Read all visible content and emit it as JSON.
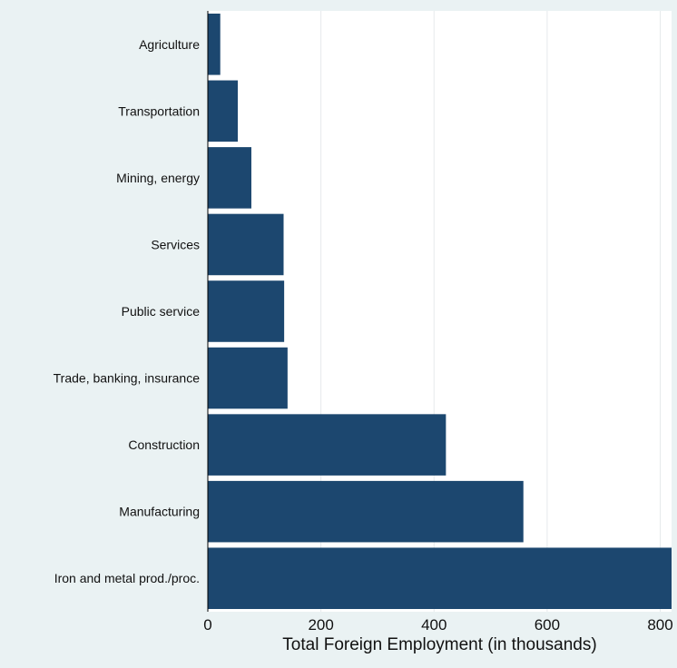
{
  "chart_data": {
    "type": "bar",
    "orientation": "horizontal",
    "title": "",
    "xlabel": "Total Foreign Employment (in thousands)",
    "ylabel": "",
    "categories": [
      "Agriculture",
      "Transportation",
      "Mining, energy",
      "Services",
      "Public service",
      "Trade, banking, insurance",
      "Construction",
      "Manufacturing",
      "Iron and metal prod./proc."
    ],
    "values": [
      22,
      53,
      77,
      134,
      135,
      141,
      421,
      558,
      820
    ],
    "xlim": [
      0,
      820
    ],
    "xticks": [
      0,
      200,
      400,
      600,
      800
    ],
    "xtick_labels": [
      "0",
      "200",
      "400",
      "600",
      "800"
    ],
    "grid": true,
    "legend": "none",
    "colors": {
      "bar": "#1c476f",
      "background": "#eaf2f3",
      "plot_area": "#ffffff",
      "grid": "#e6eaec"
    }
  }
}
